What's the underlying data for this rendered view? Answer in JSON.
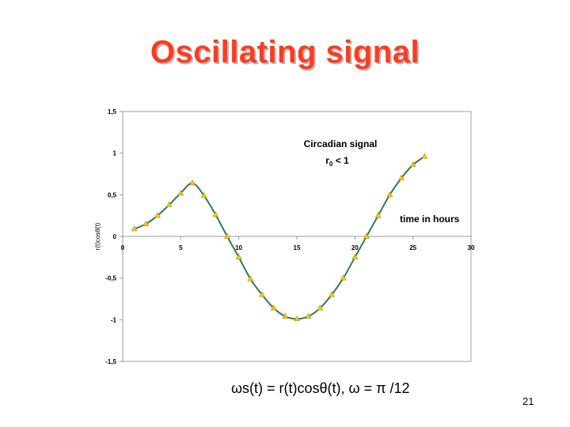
{
  "slide": {
    "title": "Oscillating signal",
    "formula": "ωs(t) = r(t)cosθ(t),  ω = π /12",
    "page_number": "21"
  },
  "chart_data": {
    "type": "line",
    "ylabel": "r(t)cosθ(t)",
    "xlabel": "time in hours",
    "annotation": {
      "line1": "Circadian signal",
      "line2_base": "r",
      "line2_sub": "0",
      "line2_rest": " < 1"
    },
    "xlim": [
      0,
      30
    ],
    "ylim": [
      -1.5,
      1.5
    ],
    "x_ticks": [
      0,
      5,
      10,
      15,
      20,
      25,
      30
    ],
    "x_tick_labels": [
      "0",
      "5",
      "10",
      "15",
      "20",
      "25",
      "30"
    ],
    "y_ticks": [
      1.5,
      1,
      0.5,
      0,
      -0.5,
      -1,
      -1.5
    ],
    "y_tick_labels": [
      "1,5",
      "1",
      "0,5",
      "0",
      "-0,5",
      "-1",
      "-1,5"
    ],
    "grid": false,
    "colors": {
      "line": "#2e7d52",
      "marker": "#f2c81a",
      "marker_edge": "#a07800",
      "axis": "#999999",
      "plot_border": "#a0a0a0"
    },
    "series": [
      {
        "x": [
          1,
          2,
          3,
          4,
          5,
          6,
          7,
          8,
          9,
          10,
          11,
          12,
          13,
          14,
          15,
          16,
          17,
          18,
          19,
          20,
          21,
          22,
          23,
          24,
          25,
          26
        ],
        "values": [
          0.09,
          0.15,
          0.25,
          0.38,
          0.52,
          0.64,
          0.49,
          0.26,
          0.0,
          -0.25,
          -0.51,
          -0.7,
          -0.86,
          -0.96,
          -0.99,
          -0.96,
          -0.86,
          -0.7,
          -0.5,
          -0.25,
          0.0,
          0.25,
          0.5,
          0.7,
          0.86,
          0.96
        ]
      }
    ]
  }
}
